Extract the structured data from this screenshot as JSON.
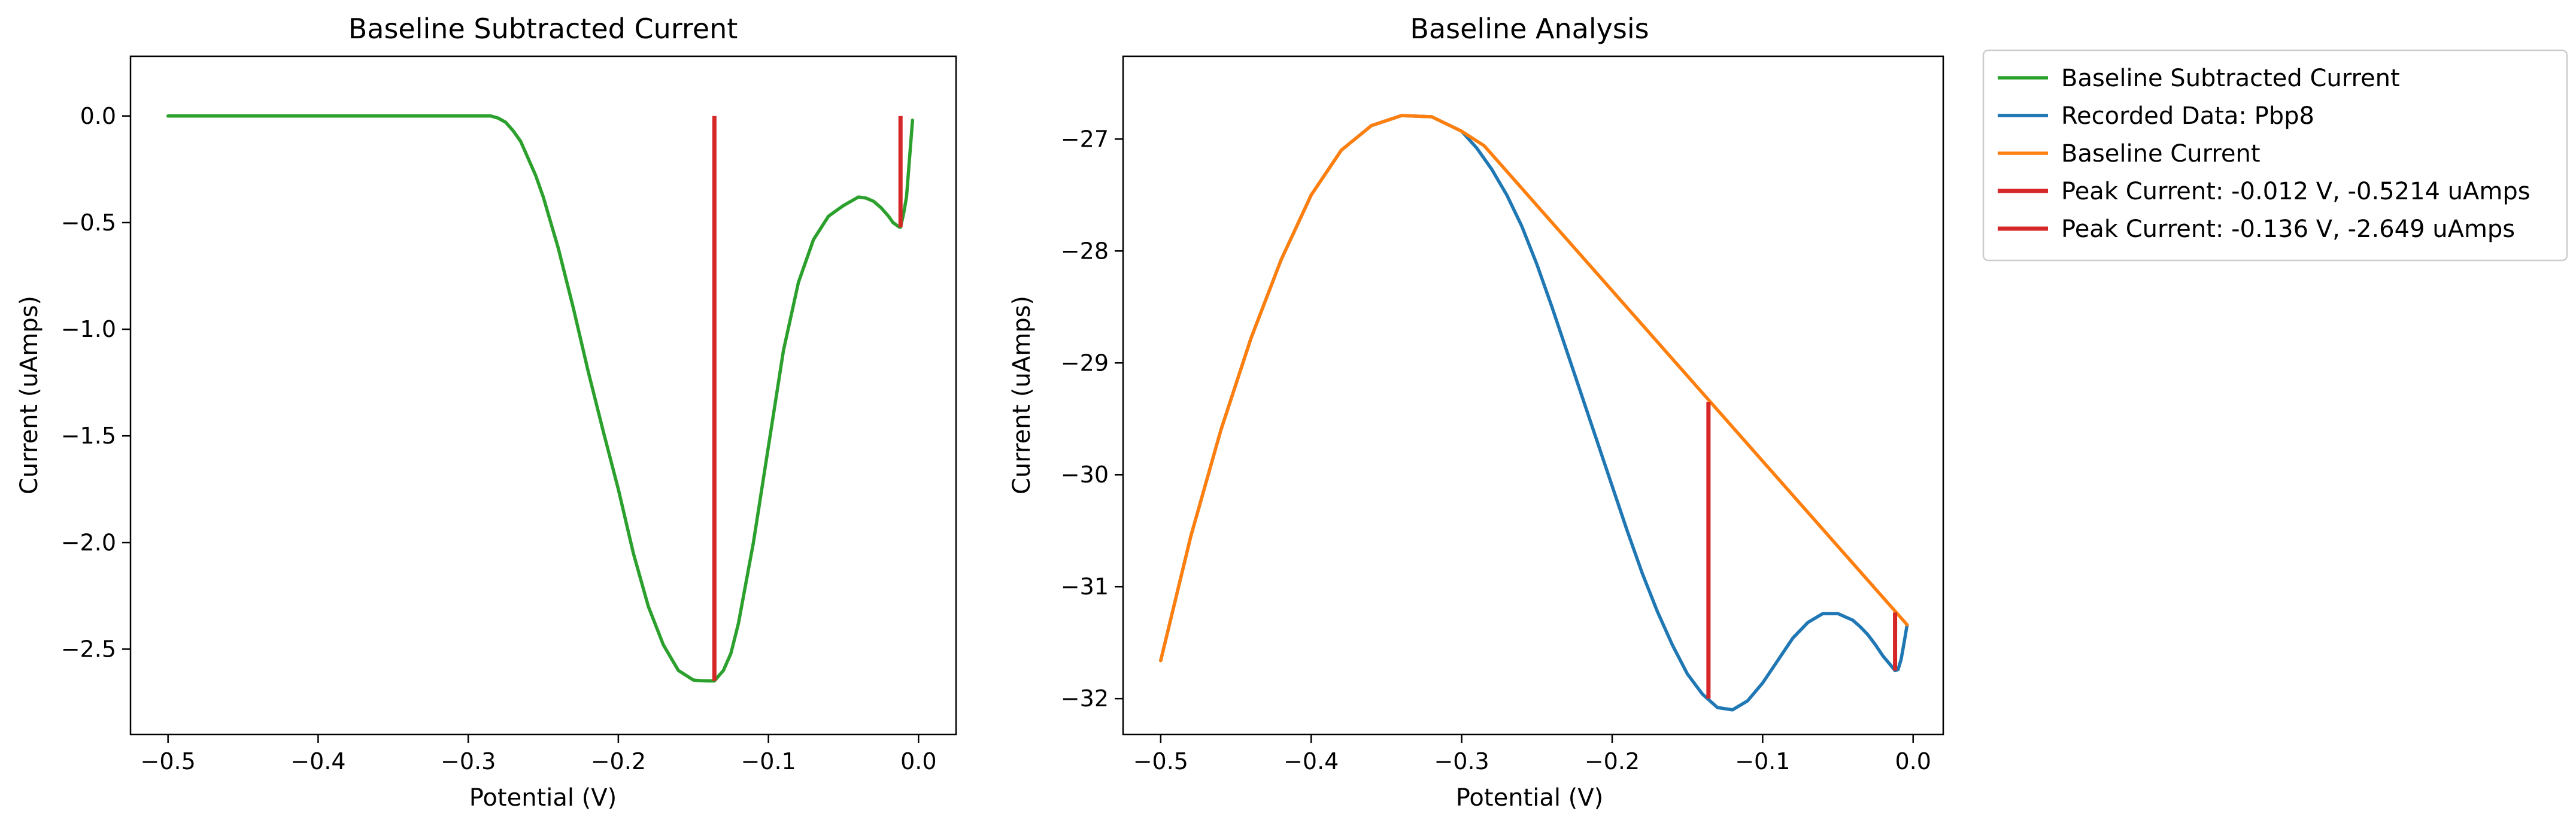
{
  "chart_data": [
    {
      "type": "line",
      "title": "Baseline Subtracted Current",
      "xlabel": "Potential (V)",
      "ylabel": "Current (uAmps)",
      "xlim": [
        -0.525,
        0.025
      ],
      "ylim": [
        -2.9,
        0.28
      ],
      "xticks": [
        -0.5,
        -0.4,
        -0.3,
        -0.2,
        -0.1,
        0.0
      ],
      "xtick_labels": [
        "−0.5",
        "−0.4",
        "−0.3",
        "−0.2",
        "−0.1",
        "0.0"
      ],
      "yticks": [
        0.0,
        -0.5,
        -1.0,
        -1.5,
        -2.0,
        -2.5
      ],
      "ytick_labels": [
        "0.0",
        "−0.5",
        "−1.0",
        "−1.5",
        "−2.0",
        "−2.5"
      ],
      "series": [
        {
          "name": "Baseline Subtracted Current",
          "color": "#2ca02c",
          "x": [
            -0.5,
            -0.45,
            -0.4,
            -0.35,
            -0.3,
            -0.285,
            -0.28,
            -0.275,
            -0.27,
            -0.265,
            -0.26,
            -0.255,
            -0.25,
            -0.24,
            -0.23,
            -0.22,
            -0.21,
            -0.2,
            -0.19,
            -0.18,
            -0.17,
            -0.16,
            -0.15,
            -0.145,
            -0.14,
            -0.136,
            -0.13,
            -0.125,
            -0.12,
            -0.11,
            -0.1,
            -0.09,
            -0.08,
            -0.07,
            -0.06,
            -0.05,
            -0.04,
            -0.035,
            -0.03,
            -0.025,
            -0.02,
            -0.017,
            -0.015,
            -0.013,
            -0.012,
            -0.01,
            -0.008,
            -0.006,
            -0.004
          ],
          "y": [
            0.0,
            0.0,
            0.0,
            0.0,
            0.0,
            0.0,
            -0.01,
            -0.03,
            -0.07,
            -0.12,
            -0.2,
            -0.28,
            -0.38,
            -0.62,
            -0.9,
            -1.2,
            -1.48,
            -1.75,
            -2.05,
            -2.3,
            -2.48,
            -2.6,
            -2.645,
            -2.648,
            -2.649,
            -2.649,
            -2.6,
            -2.52,
            -2.38,
            -2.0,
            -1.55,
            -1.1,
            -0.78,
            -0.58,
            -0.47,
            -0.42,
            -0.38,
            -0.385,
            -0.4,
            -0.43,
            -0.47,
            -0.5,
            -0.51,
            -0.52,
            -0.5214,
            -0.46,
            -0.38,
            -0.2,
            -0.02
          ]
        },
        {
          "name": "Peak Current: -0.136 V, -2.649 uAmps",
          "color": "#d62728",
          "x": [
            -0.136,
            -0.136
          ],
          "y": [
            0.0,
            -2.649
          ]
        },
        {
          "name": "Peak Current: -0.012 V, -0.5214 uAmps",
          "color": "#d62728",
          "x": [
            -0.012,
            -0.012
          ],
          "y": [
            0.0,
            -0.5214
          ]
        }
      ]
    },
    {
      "type": "line",
      "title": "Baseline Analysis",
      "xlabel": "Potential (V)",
      "ylabel": "Current (uAmps)",
      "xlim": [
        -0.525,
        0.02
      ],
      "ylim": [
        -32.32,
        -26.26
      ],
      "xticks": [
        -0.5,
        -0.4,
        -0.3,
        -0.2,
        -0.1,
        0.0
      ],
      "xtick_labels": [
        "−0.5",
        "−0.4",
        "−0.3",
        "−0.2",
        "−0.1",
        "0.0"
      ],
      "yticks": [
        -27,
        -28,
        -29,
        -30,
        -31,
        -32
      ],
      "ytick_labels": [
        "−27",
        "−28",
        "−29",
        "−30",
        "−31",
        "−32"
      ],
      "series": [
        {
          "name": "Recorded Data: Pbp8",
          "color": "#1f77b4",
          "x": [
            -0.5,
            -0.48,
            -0.46,
            -0.44,
            -0.42,
            -0.4,
            -0.38,
            -0.36,
            -0.34,
            -0.32,
            -0.3,
            -0.29,
            -0.28,
            -0.27,
            -0.26,
            -0.25,
            -0.24,
            -0.23,
            -0.22,
            -0.21,
            -0.2,
            -0.19,
            -0.18,
            -0.17,
            -0.16,
            -0.15,
            -0.14,
            -0.13,
            -0.12,
            -0.11,
            -0.1,
            -0.09,
            -0.08,
            -0.07,
            -0.06,
            -0.05,
            -0.04,
            -0.035,
            -0.03,
            -0.025,
            -0.02,
            -0.015,
            -0.012,
            -0.01,
            -0.008,
            -0.006,
            -0.004
          ],
          "y": [
            -31.66,
            -30.55,
            -29.6,
            -28.78,
            -28.08,
            -27.5,
            -27.1,
            -26.88,
            -26.79,
            -26.8,
            -26.93,
            -27.08,
            -27.27,
            -27.5,
            -27.78,
            -28.12,
            -28.5,
            -28.9,
            -29.3,
            -29.7,
            -30.1,
            -30.5,
            -30.88,
            -31.22,
            -31.52,
            -31.78,
            -31.96,
            -32.08,
            -32.1,
            -32.02,
            -31.86,
            -31.66,
            -31.46,
            -31.32,
            -31.24,
            -31.24,
            -31.3,
            -31.36,
            -31.43,
            -31.52,
            -31.62,
            -31.7,
            -31.75,
            -31.74,
            -31.65,
            -31.5,
            -31.34
          ]
        },
        {
          "name": "Baseline Current",
          "color": "#ff7f0e",
          "x": [
            -0.5,
            -0.48,
            -0.46,
            -0.44,
            -0.42,
            -0.4,
            -0.38,
            -0.36,
            -0.34,
            -0.32,
            -0.3,
            -0.285,
            -0.004
          ],
          "y": [
            -31.66,
            -30.55,
            -29.6,
            -28.78,
            -28.08,
            -27.5,
            -27.1,
            -26.88,
            -26.79,
            -26.8,
            -26.93,
            -27.06,
            -31.34
          ]
        },
        {
          "name": "Peak Current: -0.136 V, -2.649 uAmps",
          "color": "#d62728",
          "x": [
            -0.136,
            -0.136
          ],
          "y": [
            -29.35,
            -32.0
          ]
        },
        {
          "name": "Peak Current: -0.012 V, -0.5214 uAmps",
          "color": "#d62728",
          "x": [
            -0.012,
            -0.012
          ],
          "y": [
            -31.23,
            -31.75
          ]
        }
      ]
    }
  ],
  "legend": {
    "placement": "outside-right-top",
    "entries": [
      {
        "label": "Baseline Subtracted Current",
        "color": "#2ca02c"
      },
      {
        "label": "Recorded Data: Pbp8",
        "color": "#1f77b4"
      },
      {
        "label": "Baseline Current",
        "color": "#ff7f0e"
      },
      {
        "label": "Peak Current: -0.012 V, -0.5214 uAmps",
        "color": "#d62728"
      },
      {
        "label": "Peak Current: -0.136 V, -2.649 uAmps",
        "color": "#d62728"
      }
    ]
  }
}
